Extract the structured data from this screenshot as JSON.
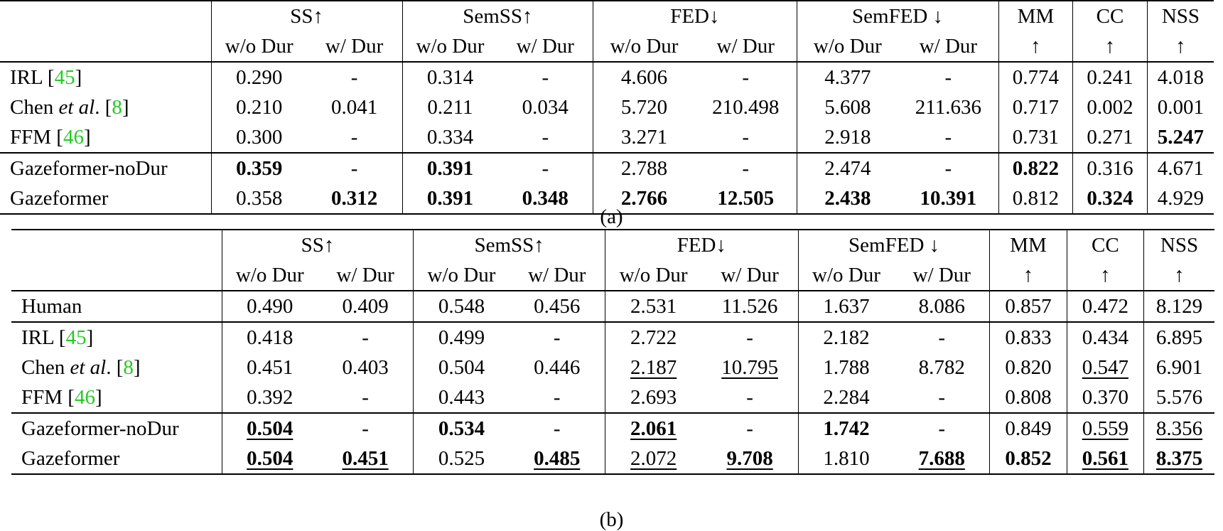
{
  "tables": [
    {
      "id": "a",
      "caption": "(a)",
      "group_headers": [
        "SS↑",
        "SemSS↑",
        "FED↓",
        "SemFED ↓",
        "MM",
        "CC",
        "NSS"
      ],
      "sub_headers": [
        "w/o Dur",
        "w/ Dur",
        "w/o Dur",
        "w/ Dur",
        "w/o Dur",
        "w/ Dur",
        "w/o Dur",
        "w/ Dur",
        "↑",
        "↑",
        "↑"
      ],
      "rows": [
        {
          "method": "IRL",
          "cite": "45",
          "cells": [
            {
              "v": "0.290"
            },
            {
              "v": "-"
            },
            {
              "v": "0.314"
            },
            {
              "v": "-"
            },
            {
              "v": "4.606"
            },
            {
              "v": "-"
            },
            {
              "v": "4.377"
            },
            {
              "v": "-"
            },
            {
              "v": "0.774"
            },
            {
              "v": "0.241"
            },
            {
              "v": "4.018"
            }
          ]
        },
        {
          "method": "Chen",
          "method_italic": "et al",
          "method_suffix": ".",
          "cite": "8",
          "cells": [
            {
              "v": "0.210"
            },
            {
              "v": "0.041"
            },
            {
              "v": "0.211"
            },
            {
              "v": "0.034"
            },
            {
              "v": "5.720"
            },
            {
              "v": "210.498"
            },
            {
              "v": "5.608"
            },
            {
              "v": "211.636"
            },
            {
              "v": "0.717"
            },
            {
              "v": "0.002"
            },
            {
              "v": "0.001"
            }
          ]
        },
        {
          "method": "FFM",
          "cite": "46",
          "cells": [
            {
              "v": "0.300"
            },
            {
              "v": "-"
            },
            {
              "v": "0.334"
            },
            {
              "v": "-"
            },
            {
              "v": "3.271"
            },
            {
              "v": "-"
            },
            {
              "v": "2.918"
            },
            {
              "v": "-"
            },
            {
              "v": "0.731"
            },
            {
              "v": "0.271"
            },
            {
              "v": "5.247",
              "b": true
            }
          ]
        },
        {
          "method": "Gazeformer-noDur",
          "sep": true,
          "cells": [
            {
              "v": "0.359",
              "b": true
            },
            {
              "v": "-"
            },
            {
              "v": "0.391",
              "b": true
            },
            {
              "v": "-"
            },
            {
              "v": "2.788"
            },
            {
              "v": "-"
            },
            {
              "v": "2.474"
            },
            {
              "v": "-"
            },
            {
              "v": "0.822",
              "b": true
            },
            {
              "v": "0.316"
            },
            {
              "v": "4.671"
            }
          ]
        },
        {
          "method": "Gazeformer",
          "cells": [
            {
              "v": "0.358"
            },
            {
              "v": "0.312",
              "b": true
            },
            {
              "v": "0.391",
              "b": true
            },
            {
              "v": "0.348",
              "b": true
            },
            {
              "v": "2.766",
              "b": true
            },
            {
              "v": "12.505",
              "b": true
            },
            {
              "v": "2.438",
              "b": true
            },
            {
              "v": "10.391",
              "b": true
            },
            {
              "v": "0.812"
            },
            {
              "v": "0.324",
              "b": true
            },
            {
              "v": "4.929"
            }
          ]
        }
      ]
    },
    {
      "id": "b",
      "caption": "(b)",
      "group_headers": [
        "SS↑",
        "SemSS↑",
        "FED↓",
        "SemFED ↓",
        "MM",
        "CC",
        "NSS"
      ],
      "sub_headers": [
        "w/o Dur",
        "w/ Dur",
        "w/o Dur",
        "w/ Dur",
        "w/o Dur",
        "w/ Dur",
        "w/o Dur",
        "w/ Dur",
        "↑",
        "↑",
        "↑"
      ],
      "rows": [
        {
          "method": "Human",
          "cells": [
            {
              "v": "0.490"
            },
            {
              "v": "0.409"
            },
            {
              "v": "0.548"
            },
            {
              "v": "0.456"
            },
            {
              "v": "2.531"
            },
            {
              "v": "11.526"
            },
            {
              "v": "1.637"
            },
            {
              "v": "8.086"
            },
            {
              "v": "0.857"
            },
            {
              "v": "0.472"
            },
            {
              "v": "8.129"
            }
          ]
        },
        {
          "method": "IRL",
          "cite": "45",
          "sep": true,
          "cells": [
            {
              "v": "0.418"
            },
            {
              "v": "-"
            },
            {
              "v": "0.499"
            },
            {
              "v": "-"
            },
            {
              "v": "2.722"
            },
            {
              "v": "-"
            },
            {
              "v": "2.182"
            },
            {
              "v": "-"
            },
            {
              "v": "0.833"
            },
            {
              "v": "0.434"
            },
            {
              "v": "6.895"
            }
          ]
        },
        {
          "method": "Chen",
          "method_italic": "et al",
          "method_suffix": ".",
          "cite": "8",
          "cells": [
            {
              "v": "0.451"
            },
            {
              "v": "0.403"
            },
            {
              "v": "0.504"
            },
            {
              "v": "0.446"
            },
            {
              "v": "2.187",
              "u": true
            },
            {
              "v": "10.795",
              "u": true
            },
            {
              "v": "1.788"
            },
            {
              "v": "8.782"
            },
            {
              "v": "0.820"
            },
            {
              "v": "0.547",
              "u": true
            },
            {
              "v": "6.901"
            }
          ]
        },
        {
          "method": "FFM",
          "cite": "46",
          "cells": [
            {
              "v": "0.392"
            },
            {
              "v": "-"
            },
            {
              "v": "0.443"
            },
            {
              "v": "-"
            },
            {
              "v": "2.693"
            },
            {
              "v": "-"
            },
            {
              "v": "2.284"
            },
            {
              "v": "-"
            },
            {
              "v": "0.808"
            },
            {
              "v": "0.370"
            },
            {
              "v": "5.576"
            }
          ]
        },
        {
          "method": "Gazeformer-noDur",
          "sep": true,
          "cells": [
            {
              "v": "0.504",
              "b": true,
              "u": true
            },
            {
              "v": "-"
            },
            {
              "v": "0.534",
              "b": true
            },
            {
              "v": "-"
            },
            {
              "v": "2.061",
              "b": true,
              "u": true
            },
            {
              "v": "-"
            },
            {
              "v": "1.742",
              "b": true
            },
            {
              "v": "-"
            },
            {
              "v": "0.849"
            },
            {
              "v": "0.559",
              "u": true
            },
            {
              "v": "8.356",
              "u": true
            }
          ]
        },
        {
          "method": "Gazeformer",
          "cells": [
            {
              "v": "0.504",
              "b": true,
              "u": true
            },
            {
              "v": "0.451",
              "b": true,
              "u": true
            },
            {
              "v": "0.525"
            },
            {
              "v": "0.485",
              "b": true,
              "u": true
            },
            {
              "v": "2.072",
              "u": true
            },
            {
              "v": "9.708",
              "b": true,
              "u": true
            },
            {
              "v": "1.810"
            },
            {
              "v": "7.688",
              "b": true,
              "u": true
            },
            {
              "v": "0.852",
              "b": true
            },
            {
              "v": "0.561",
              "b": true,
              "u": true
            },
            {
              "v": "8.375",
              "b": true,
              "u": true
            }
          ]
        }
      ]
    }
  ]
}
